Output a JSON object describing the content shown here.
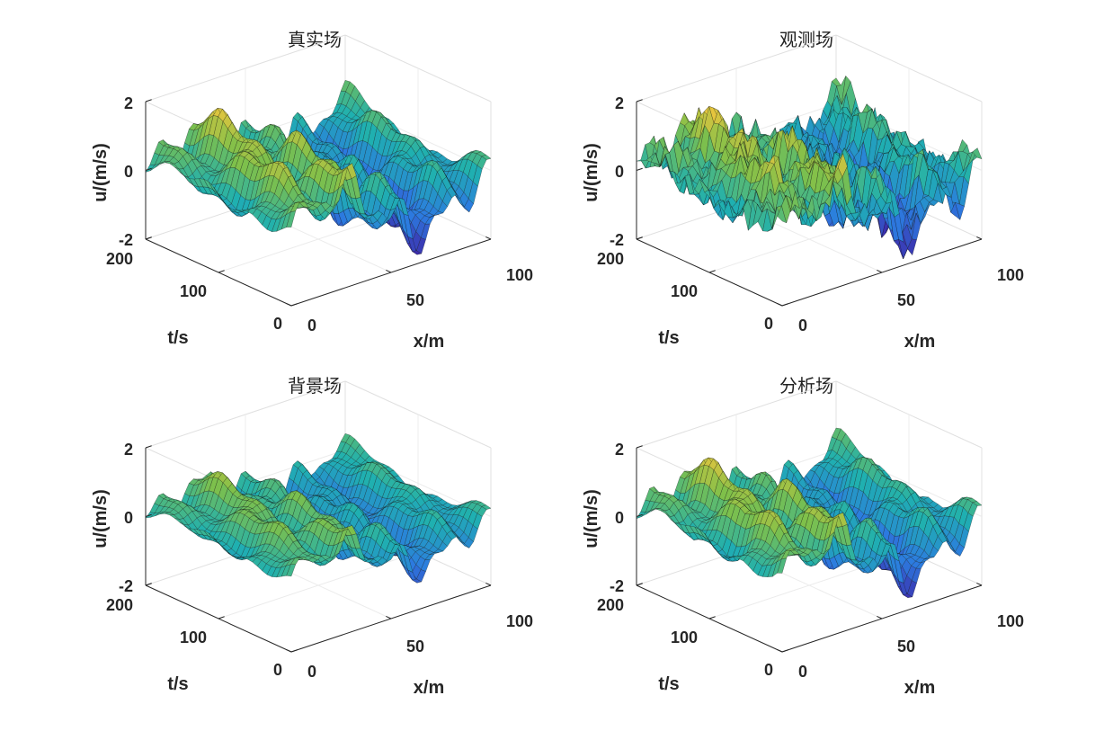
{
  "chart_data": [
    {
      "type": "surface",
      "title": "真实场",
      "xlabel": "x/m",
      "ylabel": "t/s",
      "zlabel": "u/(m/s)",
      "xlim": [
        0,
        100
      ],
      "ylim": [
        0,
        200
      ],
      "zlim": [
        -2,
        2
      ],
      "xticks": [
        "0",
        "50",
        "100"
      ],
      "yticks": [
        "0",
        "100",
        "200"
      ],
      "zticks": [
        "-2",
        "0",
        "2"
      ],
      "amplitude": 1.0,
      "noise": 0.0,
      "colormap": [
        "#3e26a8",
        "#2c7be0",
        "#1fb0b0",
        "#7fc04a",
        "#f5c63c"
      ]
    },
    {
      "type": "surface",
      "title": "观测场",
      "xlabel": "x/m",
      "ylabel": "t/s",
      "zlabel": "u/(m/s)",
      "xlim": [
        0,
        100
      ],
      "ylim": [
        0,
        200
      ],
      "zlim": [
        -2,
        2
      ],
      "xticks": [
        "0",
        "50",
        "100"
      ],
      "yticks": [
        "0",
        "100",
        "200"
      ],
      "zticks": [
        "-2",
        "0",
        "2"
      ],
      "amplitude": 1.0,
      "noise": 0.35,
      "colormap": [
        "#3e26a8",
        "#2c7be0",
        "#1fb0b0",
        "#7fc04a",
        "#f5c63c"
      ]
    },
    {
      "type": "surface",
      "title": "背景场",
      "xlabel": "x/m",
      "ylabel": "t/s",
      "zlabel": "u/(m/s)",
      "xlim": [
        0,
        100
      ],
      "ylim": [
        0,
        200
      ],
      "zlim": [
        -2,
        2
      ],
      "xticks": [
        "0",
        "50",
        "100"
      ],
      "yticks": [
        "0",
        "100",
        "200"
      ],
      "zticks": [
        "-2",
        "0",
        "2"
      ],
      "amplitude": 0.7,
      "noise": 0.0,
      "colormap": [
        "#3e26a8",
        "#2c7be0",
        "#1fb0b0",
        "#7fc04a",
        "#f5c63c"
      ]
    },
    {
      "type": "surface",
      "title": "分析场",
      "xlabel": "x/m",
      "ylabel": "t/s",
      "zlabel": "u/(m/s)",
      "xlim": [
        0,
        100
      ],
      "ylim": [
        0,
        200
      ],
      "zlim": [
        -2,
        2
      ],
      "xticks": [
        "0",
        "50",
        "100"
      ],
      "yticks": [
        "0",
        "100",
        "200"
      ],
      "zticks": [
        "-2",
        "0",
        "2"
      ],
      "amplitude": 0.95,
      "noise": 0.03,
      "colormap": [
        "#3e26a8",
        "#2c7be0",
        "#1fb0b0",
        "#7fc04a",
        "#f5c63c"
      ]
    }
  ]
}
